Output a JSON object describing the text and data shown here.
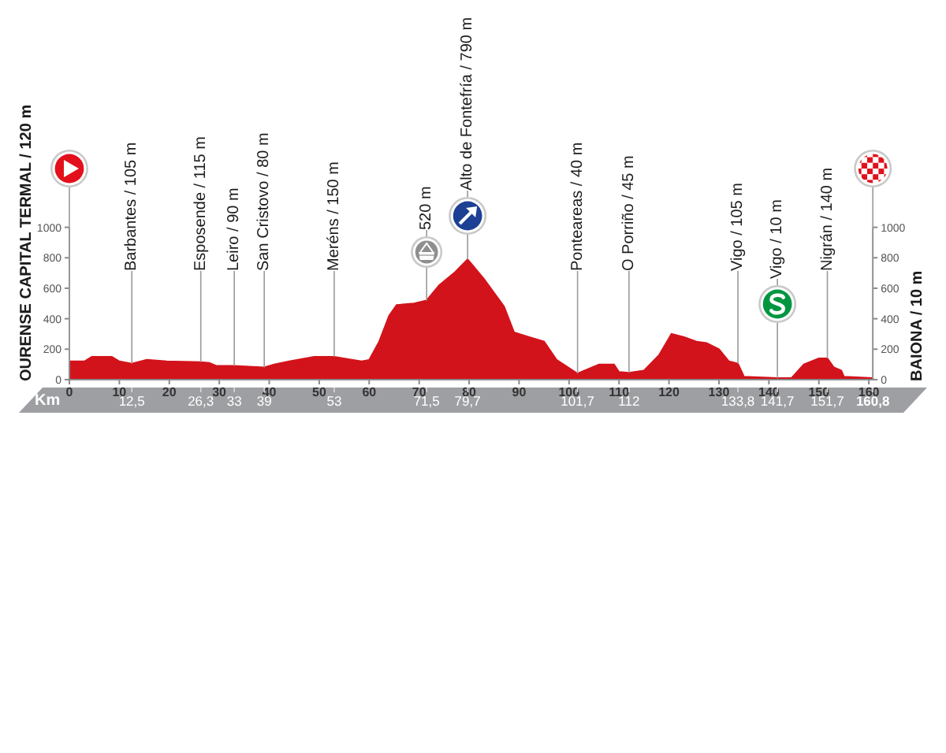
{
  "chart_data": {
    "type": "area",
    "color": "#d3131b",
    "x": [
      0,
      3,
      4.5,
      8.5,
      10,
      12.5,
      15.5,
      19.5,
      26.3,
      28,
      29.5,
      33,
      39,
      41,
      44,
      49,
      53,
      56.5,
      58.5,
      60,
      62,
      64,
      65.5,
      69,
      71.5,
      74,
      77,
      79.7,
      83,
      87,
      89,
      92,
      95,
      97.5,
      101.7,
      106,
      109,
      110,
      112,
      115,
      118,
      120.5,
      123,
      125.5,
      127.5,
      130,
      132,
      133.8,
      135,
      141.7,
      144.5,
      147,
      150,
      151.7,
      153,
      154.5,
      155,
      160.8
    ],
    "values": [
      120,
      120,
      150,
      150,
      120,
      105,
      130,
      120,
      115,
      110,
      90,
      90,
      80,
      100,
      120,
      150,
      150,
      130,
      120,
      130,
      250,
      420,
      490,
      500,
      520,
      620,
      700,
      790,
      660,
      480,
      310,
      280,
      250,
      130,
      40,
      100,
      100,
      50,
      45,
      60,
      160,
      300,
      280,
      250,
      240,
      200,
      120,
      105,
      20,
      10,
      10,
      100,
      140,
      140,
      80,
      60,
      20,
      10
    ],
    "xlim": [
      0,
      160.8
    ],
    "xticks": [
      0,
      10,
      20,
      30,
      40,
      50,
      60,
      70,
      80,
      90,
      100,
      110,
      120,
      130,
      140,
      150,
      160
    ],
    "ylim": [
      0,
      1000
    ],
    "yticks": [
      0,
      200,
      400,
      600,
      800,
      1000
    ],
    "y2lim": [
      0,
      1000
    ],
    "y2ticks": [
      0,
      200,
      400,
      600,
      800,
      1000
    ],
    "x2label": "Km",
    "x2lim": [
      0,
      160.8
    ],
    "x2ticks": [
      {
        "value": 12.5,
        "label": "12,5"
      },
      {
        "value": 26.3,
        "label": "26,3"
      },
      33,
      39,
      53,
      {
        "value": 71.5,
        "label": "71,5"
      },
      {
        "value": 79.7,
        "label": "79,7"
      },
      {
        "value": 101.7,
        "label": "101,7"
      },
      112,
      {
        "value": 133.8,
        "label": "133,8"
      },
      {
        "value": 141.7,
        "label": "141,7"
      },
      {
        "value": 151.7,
        "label": "151,7"
      },
      {
        "value": 160.8,
        "label": "160,8"
      }
    ],
    "annotations": [
      {
        "text": "OURENSE CAPITAL TERMAL / 120 m",
        "x": 0,
        "y": 120
      },
      {
        "text": "Barbantes / 105 m",
        "x": 12.5,
        "y": 105
      },
      {
        "text": "Esposende / 115 m",
        "x": 26.3,
        "y": 115
      },
      {
        "text": "Leiro / 90 m",
        "x": 33,
        "y": 90
      },
      {
        "text": "San Cristovo / 80 m",
        "x": 39,
        "y": 80
      },
      {
        "text": "Meréns / 150 m",
        "x": 53,
        "y": 150
      },
      {
        "text": "520 m",
        "x": 71.5,
        "y": 520
      },
      {
        "text": "Alto de Fontefría / 790 m",
        "x": 79.7,
        "y": 790
      },
      {
        "text": "Ponteareas / 40 m",
        "x": 101.7,
        "y": 40
      },
      {
        "text": "O Porriño / 45 m",
        "x": 112,
        "y": 45
      },
      {
        "text": "Vigo / 105 m",
        "x": 133.8,
        "y": 105
      },
      {
        "text": "Vigo / 10 m",
        "x": 141.7,
        "y": 10
      },
      {
        "text": "Nigrán / 140 m",
        "x": 151.7,
        "y": 140
      },
      {
        "text": "BAIONA / 10 m",
        "x": 160.8,
        "y": 10
      }
    ]
  }
}
